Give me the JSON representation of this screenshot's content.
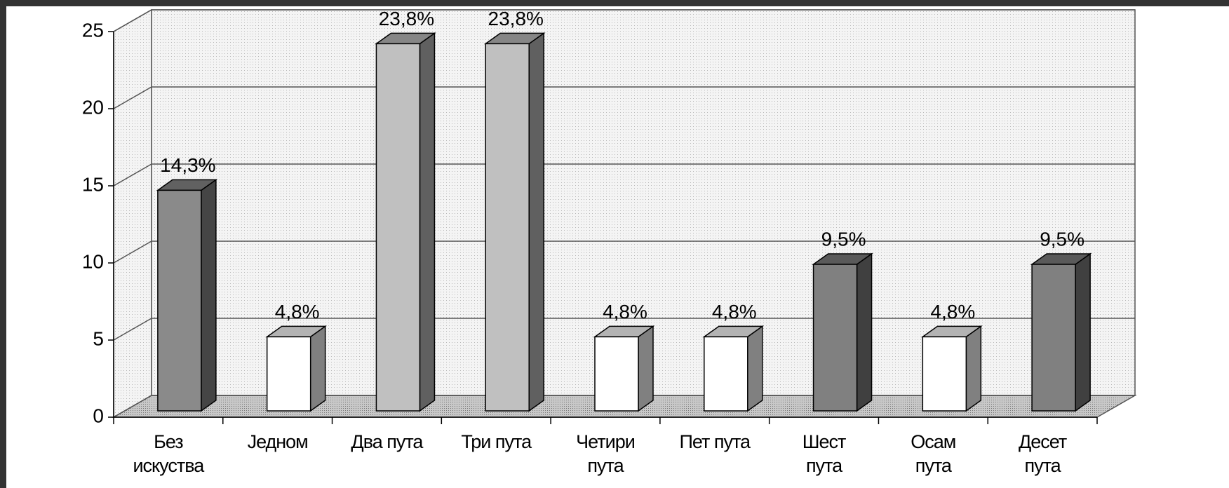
{
  "chart_data": {
    "type": "bar3d",
    "categories": [
      "Без\nискуства",
      "Једном",
      "Два пута",
      "Три пута",
      "Четири\nпута",
      "Пет пута",
      "Шест\nпута",
      "Осам\nпута",
      "Десет\nпута"
    ],
    "values": [
      14.3,
      4.8,
      23.8,
      23.8,
      4.8,
      4.8,
      9.5,
      4.8,
      9.5
    ],
    "value_labels": [
      "14,3%",
      "4,8%",
      "23,8%",
      "23,8%",
      "4,8%",
      "4,8%",
      "9,5%",
      "4,8%",
      "9,5%"
    ],
    "colors": [
      "#8a8a8a",
      "#ffffff",
      "#c0c0c0",
      "#c0c0c0",
      "#ffffff",
      "#ffffff",
      "#808080",
      "#ffffff",
      "#808080"
    ],
    "ylim": [
      0,
      25
    ],
    "yticks": [
      0,
      5,
      10,
      15,
      20,
      25
    ],
    "grid": true
  }
}
